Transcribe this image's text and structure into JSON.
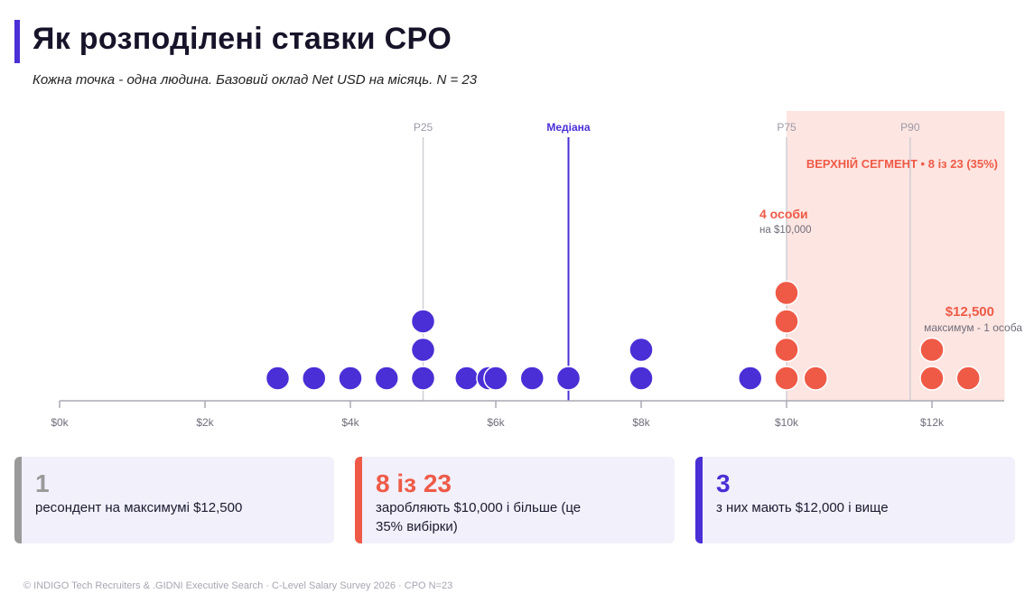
{
  "title": "Як розподілені ставки CPO",
  "subtitle": "Кожна точка - одна людина. Базовий оклад Net USD на місяць. N = 23",
  "chart_data": {
    "type": "scatter",
    "x_ticks": [
      0,
      2000,
      4000,
      6000,
      8000,
      10000,
      12000
    ],
    "x_tick_labels": [
      "$0k",
      "$2k",
      "$4k",
      "$6k",
      "$8k",
      "$10k",
      "$12k"
    ],
    "xlim": [
      0,
      13000
    ],
    "grid": false,
    "points": [
      {
        "x": 3000,
        "stack": 0
      },
      {
        "x": 3500,
        "stack": 0
      },
      {
        "x": 4000,
        "stack": 0
      },
      {
        "x": 4500,
        "stack": 0
      },
      {
        "x": 5000,
        "stack": 0
      },
      {
        "x": 5000,
        "stack": 1
      },
      {
        "x": 5000,
        "stack": 2
      },
      {
        "x": 5600,
        "stack": 0
      },
      {
        "x": 5900,
        "stack": 0
      },
      {
        "x": 6000,
        "stack": 0
      },
      {
        "x": 6500,
        "stack": 0
      },
      {
        "x": 7000,
        "stack": 0
      },
      {
        "x": 8000,
        "stack": 0
      },
      {
        "x": 8000,
        "stack": 1
      },
      {
        "x": 9500,
        "stack": 0
      },
      {
        "x": 10000,
        "stack": 0
      },
      {
        "x": 10000,
        "stack": 1
      },
      {
        "x": 10000,
        "stack": 2
      },
      {
        "x": 10000,
        "stack": 3
      },
      {
        "x": 10400,
        "stack": 0
      },
      {
        "x": 12000,
        "stack": 0
      },
      {
        "x": 12000,
        "stack": 1
      },
      {
        "x": 12500,
        "stack": 0
      }
    ],
    "reference_lines": [
      {
        "label": "P25",
        "x": 5000,
        "style": "light"
      },
      {
        "label": "Медіана",
        "x": 7000,
        "style": "accent"
      },
      {
        "label": "P75",
        "x": 10000,
        "style": "light"
      },
      {
        "label": "P90",
        "x": 11700,
        "style": "light"
      }
    ],
    "highlight_segment": {
      "from": 10000,
      "to": 13000,
      "label": "ВЕРХНІЙ СЕГМЕНТ  •  8 із 23 (35%)"
    },
    "annotations": [
      {
        "title": "4 особи",
        "sub": "на $10,000"
      },
      {
        "title": "$12,500",
        "sub": "максимум - 1 особа"
      }
    ]
  },
  "colors": {
    "base": "#4a2fd6",
    "top_segment": "#ef5a47",
    "segment_bg": "#fde5e1",
    "gray_accent": "#9a9a9a"
  },
  "cards": [
    {
      "big": "1",
      "text": "ресондент на максимумі $12,500",
      "color": "gray"
    },
    {
      "big": "8 із 23",
      "text": "заробляють $10,000 і більше (це 35% вибірки)",
      "color": "red"
    },
    {
      "big": "3",
      "text": "з них мають $12,000 і вище",
      "color": "blue"
    }
  ],
  "footer": "© INDIGO Tech Recruiters & .GIDNI Executive Search · C-Level Salary Survey 2026 · CPO N=23"
}
